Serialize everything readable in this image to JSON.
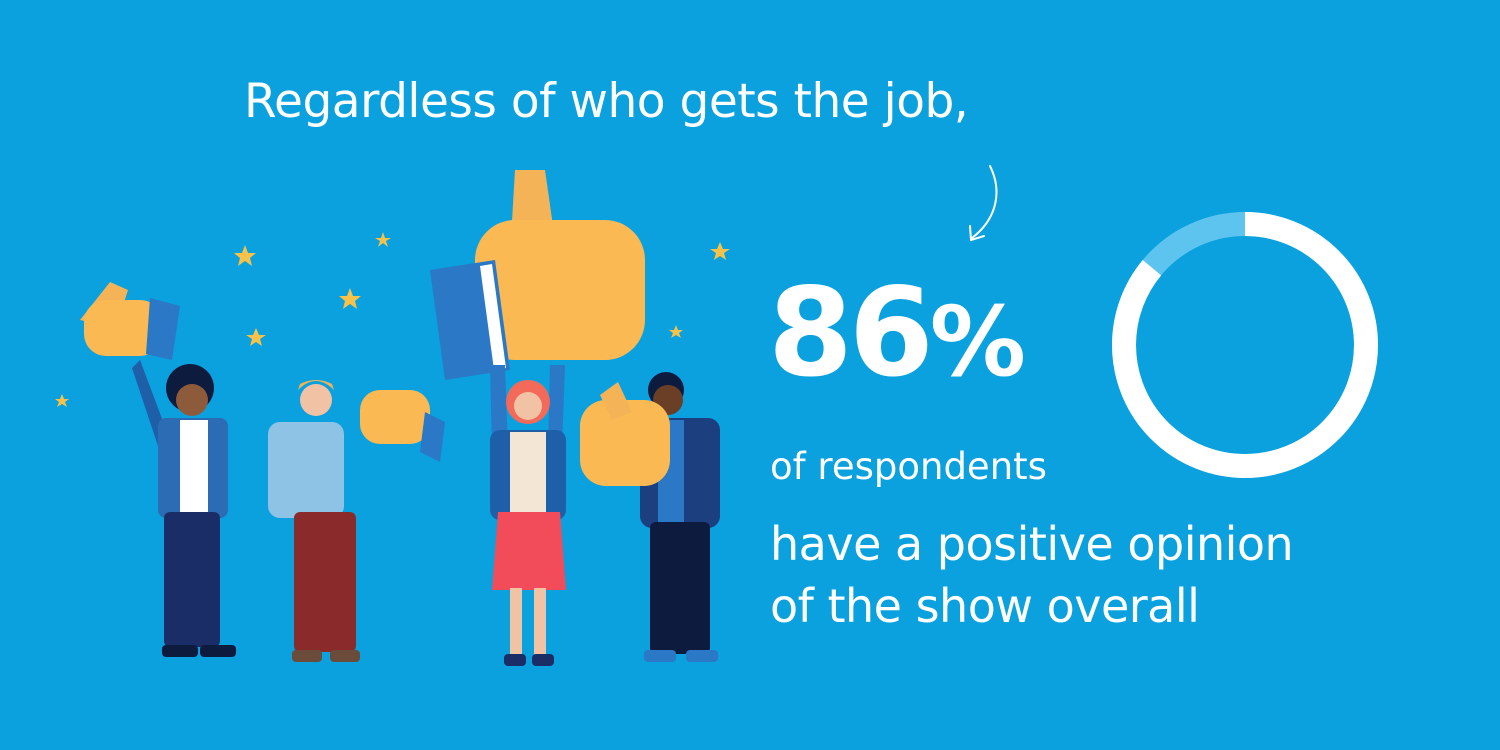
{
  "headline": "Regardless of who gets the job,",
  "stat": {
    "value": "86",
    "unit": "%",
    "line1": "of respondents",
    "line2": "have a positive opinion",
    "line3": "of the show overall",
    "fraction": 0.86
  },
  "colors": {
    "background": "#0aa1de",
    "ring": "#ffffff",
    "ring_remainder": "#5cc4ee",
    "thumb": "#fbb954",
    "sleeve": "#2b78c6"
  },
  "icons": {
    "arrow": "curved-arrow-icon",
    "stars": "star-icon"
  }
}
